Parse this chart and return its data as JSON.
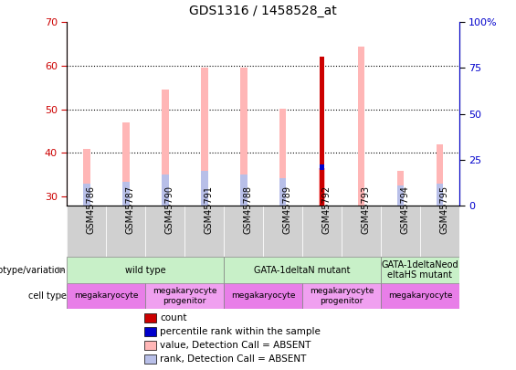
{
  "title": "GDS1316 / 1458528_at",
  "samples": [
    "GSM45786",
    "GSM45787",
    "GSM45790",
    "GSM45791",
    "GSM45788",
    "GSM45789",
    "GSM45792",
    "GSM45793",
    "GSM45794",
    "GSM45795"
  ],
  "ylim_left": [
    28,
    70
  ],
  "ylim_right": [
    0,
    100
  ],
  "yticks_left": [
    30,
    40,
    50,
    60,
    70
  ],
  "yticks_right": [
    0,
    25,
    50,
    75,
    100
  ],
  "ytick_right_labels": [
    "0",
    "25",
    "50",
    "75",
    "100%"
  ],
  "bar_base": 28,
  "count_values": [
    null,
    null,
    null,
    null,
    null,
    null,
    62,
    null,
    null,
    null
  ],
  "percentile_values": [
    null,
    null,
    null,
    null,
    null,
    null,
    36.8,
    null,
    null,
    null
  ],
  "absent_value_values": [
    41,
    47,
    54.5,
    59.5,
    59.5,
    50.2,
    null,
    64.5,
    36,
    42
  ],
  "absent_rank_values": [
    33,
    33.5,
    35,
    36,
    35,
    34.2,
    null,
    null,
    32.5,
    33
  ],
  "absent_value_gsm45792": 36.5,
  "count_color": "#cc0000",
  "percentile_color": "#0000cc",
  "absent_value_color": "#ffb6b6",
  "absent_rank_color": "#b8bfe8",
  "bar_width": 0.18,
  "count_bar_width": 0.1,
  "genotype_groups": [
    {
      "label": "wild type",
      "start": 0,
      "end": 4,
      "color": "#c8f0c8"
    },
    {
      "label": "GATA-1deltaN mutant",
      "start": 4,
      "end": 8,
      "color": "#c8f0c8"
    },
    {
      "label": "GATA-1deltaNeod\neltaHS mutant",
      "start": 8,
      "end": 10,
      "color": "#c8f0c8"
    }
  ],
  "cell_groups": [
    {
      "label": "megakaryocyte",
      "start": 0,
      "end": 2,
      "color": "#e87ee8"
    },
    {
      "label": "megakaryocyte\nprogenitor",
      "start": 2,
      "end": 4,
      "color": "#f0a0f0"
    },
    {
      "label": "megakaryocyte",
      "start": 4,
      "end": 6,
      "color": "#e87ee8"
    },
    {
      "label": "megakaryocyte\nprogenitor",
      "start": 6,
      "end": 8,
      "color": "#f0a0f0"
    },
    {
      "label": "megakaryocyte",
      "start": 8,
      "end": 10,
      "color": "#e87ee8"
    }
  ],
  "legend_items": [
    {
      "label": "count",
      "color": "#cc0000"
    },
    {
      "label": "percentile rank within the sample",
      "color": "#0000cc"
    },
    {
      "label": "value, Detection Call = ABSENT",
      "color": "#ffb6b6"
    },
    {
      "label": "rank, Detection Call = ABSENT",
      "color": "#b8bfe8"
    }
  ],
  "grid_lines": [
    40,
    50,
    60
  ],
  "xlabel_bg_color": "#d0d0d0",
  "left_label_color": "#cc0000",
  "right_label_color": "#0000cc"
}
